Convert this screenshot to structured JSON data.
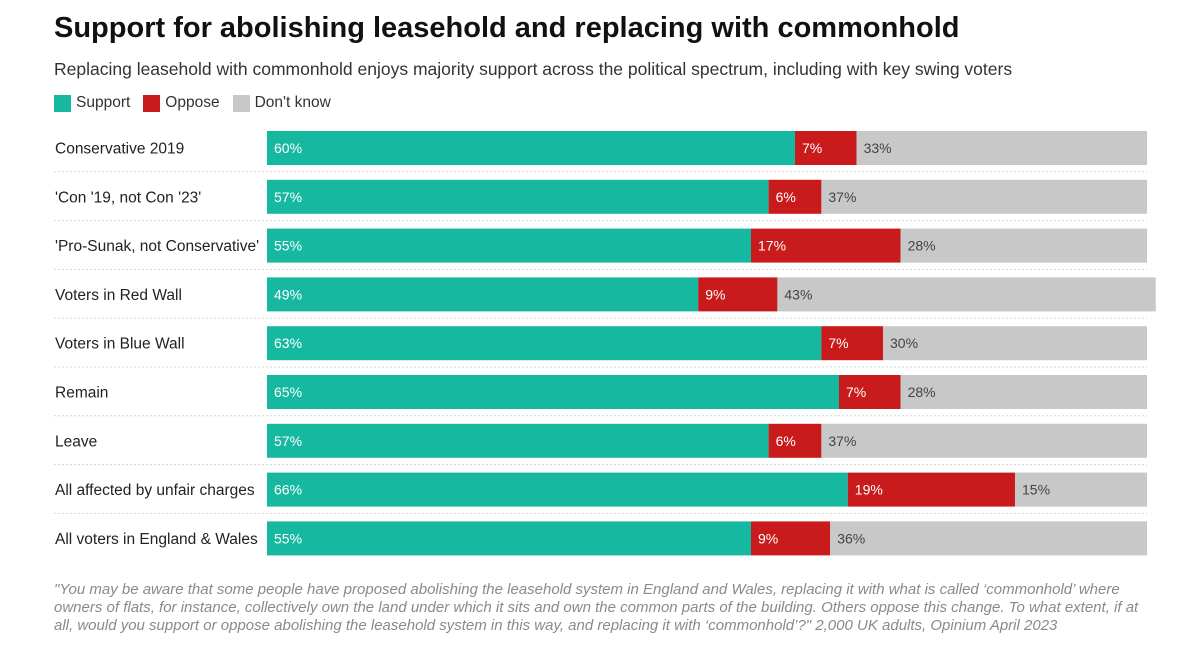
{
  "title": "Support for abolishing leasehold and replacing with commonhold",
  "subtitle": "Replacing leasehold with commonhold enjoys majority support across the political spectrum, including with key swing voters",
  "footnote": "\"You may be aware that some people have proposed abolishing the leasehold system in England and Wales, replacing it with what is called ‘commonhold’ where owners of flats, for instance, collectively own the land under which it sits and own the common parts of the building. Others oppose this change. To what extent, if at all, would you support or oppose abolishing the leasehold system in this way, and replacing it with ‘commonhold’?\" 2,000 UK adults, Opinium April 2023",
  "colors": {
    "support": "#17b8a0",
    "oppose": "#c91b1b",
    "dont_know": "#c8c8c8"
  },
  "chart_data": {
    "type": "bar",
    "orientation": "horizontal",
    "stacked": true,
    "categories": [
      "Conservative 2019",
      "'Con '19, not Con '23'",
      "'Pro-Sunak, not Conservative'",
      "Voters in Red Wall",
      "Voters in Blue Wall",
      "Remain",
      "Leave",
      "All affected by unfair charges",
      "All voters in England & Wales"
    ],
    "series": [
      {
        "name": "Support",
        "values": [
          60,
          57,
          55,
          49,
          63,
          65,
          57,
          66,
          55
        ]
      },
      {
        "name": "Oppose",
        "values": [
          7,
          6,
          17,
          9,
          7,
          7,
          6,
          19,
          9
        ]
      },
      {
        "name": "Don't know",
        "values": [
          33,
          37,
          28,
          43,
          30,
          28,
          37,
          15,
          36
        ]
      }
    ],
    "value_suffix": "%",
    "xlim": [
      0,
      100
    ],
    "legend_position": "top-left",
    "grid": false
  }
}
